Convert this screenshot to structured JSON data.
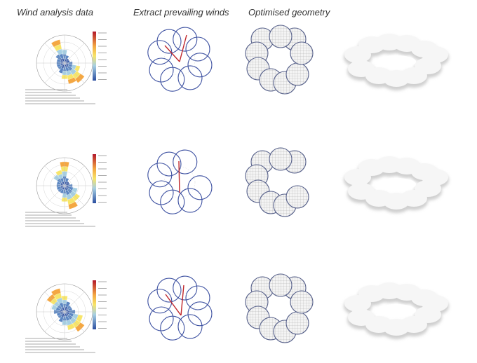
{
  "header": {
    "columns": [
      "Wind analysis data",
      "Extract prevailing winds",
      "Optimised geometry"
    ]
  }
}
